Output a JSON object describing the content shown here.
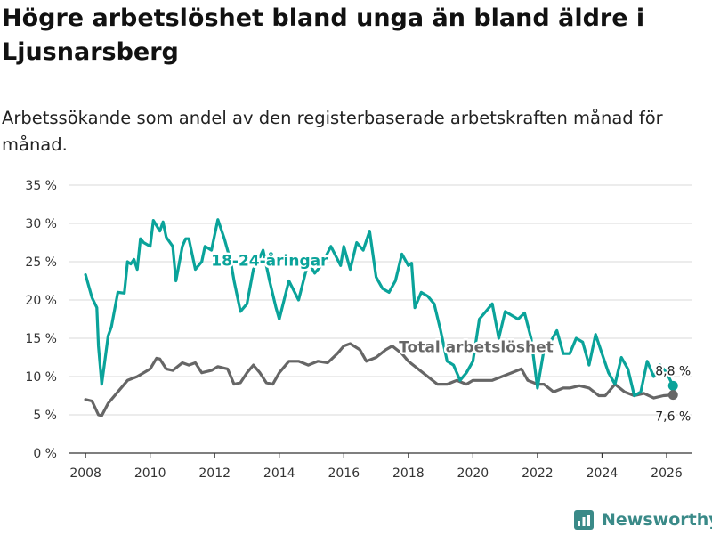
{
  "title": "Högre arbetslöshet bland unga än bland äldre i Ljusnarsberg",
  "subtitle": "Arbetssökande som andel av den registerbaserade arbetskraften månad för månad.",
  "brand": {
    "name": "Newsworthy",
    "color": "#3a8a88"
  },
  "colors": {
    "youth": "#0aa39a",
    "total": "#666666",
    "grid": "#d9d9d9",
    "axis": "#333333"
  },
  "chart_data": {
    "type": "line",
    "title": "Högre arbetslöshet bland unga än bland äldre i Ljusnarsberg",
    "xlabel": "",
    "ylabel": "",
    "xlim": [
      2007.5,
      2026.8
    ],
    "ylim": [
      0,
      35
    ],
    "yticks": [
      0,
      5,
      10,
      15,
      20,
      25,
      30,
      35
    ],
    "ytick_labels": [
      "0 %",
      "5 %",
      "10 %",
      "15 %",
      "20 %",
      "25 %",
      "30 %",
      "35 %"
    ],
    "xticks": [
      2008,
      2010,
      2012,
      2014,
      2016,
      2018,
      2020,
      2022,
      2024,
      2026
    ],
    "xtick_labels": [
      "2008",
      "2010",
      "2012",
      "2014",
      "2016",
      "2018",
      "2020",
      "2022",
      "2024",
      "2026"
    ],
    "grid": true,
    "series": [
      {
        "name": "18-24-åringar",
        "label": "18-24-åringar",
        "color": "#0aa39a",
        "last_value_label": "8,8 %",
        "x": [
          2008.0,
          2008.2,
          2008.35,
          2008.4,
          2008.5,
          2008.7,
          2008.8,
          2009.0,
          2009.2,
          2009.3,
          2009.4,
          2009.5,
          2009.6,
          2009.7,
          2009.8,
          2010.0,
          2010.1,
          2010.3,
          2010.4,
          2010.5,
          2010.7,
          2010.8,
          2011.0,
          2011.1,
          2011.2,
          2011.4,
          2011.6,
          2011.7,
          2011.9,
          2012.1,
          2012.3,
          2012.5,
          2012.6,
          2012.8,
          2013.0,
          2013.2,
          2013.4,
          2013.5,
          2013.7,
          2013.9,
          2014.0,
          2014.3,
          2014.6,
          2014.9,
          2015.1,
          2015.3,
          2015.6,
          2015.9,
          2016.0,
          2016.2,
          2016.4,
          2016.6,
          2016.8,
          2017.0,
          2017.2,
          2017.4,
          2017.6,
          2017.8,
          2018.0,
          2018.1,
          2018.2,
          2018.4,
          2018.6,
          2018.8,
          2019.0,
          2019.2,
          2019.4,
          2019.6,
          2019.8,
          2020.0,
          2020.2,
          2020.4,
          2020.6,
          2020.8,
          2021.0,
          2021.2,
          2021.4,
          2021.6,
          2021.8,
          2022.0,
          2022.2,
          2022.4,
          2022.6,
          2022.8,
          2023.0,
          2023.2,
          2023.4,
          2023.6,
          2023.8,
          2024.0,
          2024.2,
          2024.4,
          2024.6,
          2024.8,
          2025.0,
          2025.2,
          2025.4,
          2025.6,
          2025.8,
          2026.0,
          2026.2
        ],
        "values": [
          23.3,
          20.3,
          19.0,
          14.0,
          9.0,
          15.3,
          16.5,
          21.0,
          20.9,
          25.0,
          24.7,
          25.3,
          24.0,
          28.0,
          27.5,
          27.0,
          30.4,
          29.0,
          30.2,
          28.2,
          27.0,
          22.5,
          27.0,
          28.0,
          28.0,
          24.0,
          25.0,
          27.0,
          26.5,
          30.5,
          28.0,
          25.0,
          22.5,
          18.5,
          19.5,
          24.0,
          25.6,
          26.5,
          22.5,
          19.0,
          17.5,
          22.5,
          20.0,
          25.0,
          23.5,
          24.5,
          27.0,
          24.5,
          27.0,
          24.0,
          27.5,
          26.5,
          29.0,
          23.0,
          21.5,
          21.0,
          22.5,
          26.0,
          24.5,
          24.8,
          19.0,
          21.0,
          20.5,
          19.5,
          16.0,
          12.0,
          11.5,
          9.5,
          10.5,
          12.0,
          17.5,
          18.5,
          19.5,
          15.0,
          18.5,
          18.0,
          17.5,
          18.3,
          15.0,
          8.5,
          13.5,
          14.5,
          16.0,
          13.0,
          13.0,
          15.0,
          14.5,
          11.5,
          15.5,
          13.0,
          10.5,
          9.0,
          12.5,
          11.0,
          7.5,
          8.0,
          12.0,
          10.0,
          11.5,
          10.5,
          8.8
        ]
      },
      {
        "name": "Total arbetslöshet",
        "label": "Total arbetslöshet",
        "color": "#666666",
        "last_value_label": "7,6 %",
        "x": [
          2008.0,
          2008.2,
          2008.4,
          2008.5,
          2008.7,
          2009.0,
          2009.3,
          2009.6,
          2009.8,
          2010.0,
          2010.2,
          2010.3,
          2010.5,
          2010.7,
          2011.0,
          2011.2,
          2011.4,
          2011.6,
          2011.9,
          2012.1,
          2012.4,
          2012.6,
          2012.8,
          2013.0,
          2013.2,
          2013.4,
          2013.6,
          2013.8,
          2014.0,
          2014.3,
          2014.6,
          2014.9,
          2015.2,
          2015.5,
          2015.8,
          2016.0,
          2016.2,
          2016.5,
          2016.7,
          2017.0,
          2017.3,
          2017.5,
          2017.8,
          2018.0,
          2018.3,
          2018.6,
          2018.9,
          2019.2,
          2019.5,
          2019.8,
          2020.0,
          2020.3,
          2020.6,
          2020.9,
          2021.2,
          2021.5,
          2021.7,
          2022.0,
          2022.2,
          2022.5,
          2022.8,
          2023.0,
          2023.3,
          2023.6,
          2023.9,
          2024.1,
          2024.4,
          2024.7,
          2025.0,
          2025.3,
          2025.6,
          2025.9,
          2026.2
        ],
        "values": [
          7.0,
          6.8,
          5.0,
          4.9,
          6.5,
          8.0,
          9.5,
          10.0,
          10.5,
          11.0,
          12.4,
          12.3,
          11.0,
          10.8,
          11.8,
          11.5,
          11.8,
          10.5,
          10.8,
          11.3,
          11.0,
          9.0,
          9.2,
          10.5,
          11.5,
          10.5,
          9.2,
          9.0,
          10.5,
          12.0,
          12.0,
          11.5,
          12.0,
          11.8,
          13.0,
          14.0,
          14.3,
          13.5,
          12.0,
          12.5,
          13.5,
          14.0,
          13.0,
          12.0,
          11.0,
          10.0,
          9.0,
          9.0,
          9.5,
          9.0,
          9.5,
          9.5,
          9.5,
          10.0,
          10.5,
          11.0,
          9.5,
          9.0,
          9.0,
          8.0,
          8.5,
          8.5,
          8.8,
          8.5,
          7.5,
          7.5,
          9.0,
          8.0,
          7.5,
          7.8,
          7.2,
          7.5,
          7.6
        ]
      }
    ],
    "annotations": [
      {
        "text": "18-24-åringar",
        "series": "18-24-åringar",
        "x": 2013.7,
        "y": 24.5
      },
      {
        "text": "Total arbetslöshet",
        "series": "Total arbetslöshet",
        "x": 2020.1,
        "y": 13.2
      }
    ]
  }
}
